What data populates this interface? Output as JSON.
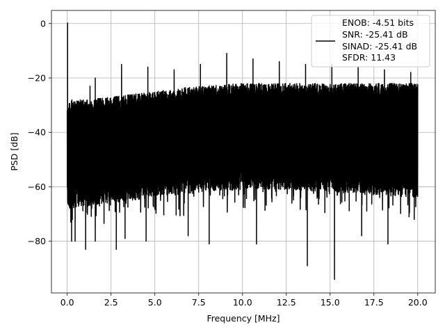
{
  "chart_data": {
    "type": "line",
    "xlabel": "Frequency [MHz]",
    "ylabel": "PSD [dB]",
    "xlim": [
      -0.9,
      21.0
    ],
    "ylim": [
      -99,
      4.8
    ],
    "xticks": [
      0.0,
      2.5,
      5.0,
      7.5,
      10.0,
      12.5,
      15.0,
      17.5,
      20.0
    ],
    "xtick_labels": [
      "0.0",
      "2.5",
      "5.0",
      "7.5",
      "10.0",
      "12.5",
      "15.0",
      "17.5",
      "20.0"
    ],
    "yticks": [
      0,
      -20,
      -40,
      -60,
      -80
    ],
    "ytick_labels": [
      "0",
      "−20",
      "−40",
      "−60",
      "−80"
    ],
    "grid": true,
    "legend_position": "top-right",
    "series": [
      {
        "name": "ENOB: -4.51 bits\nSNR: -25.41 dB\nSINAD: -25.41 dB\nSFDR: 11.43",
        "legend_lines": [
          "ENOB: -4.51 bits",
          "SNR: -25.41 dB",
          "SINAD: -25.41 dB",
          "SFDR: 11.43"
        ],
        "color": "#000000",
        "x_range": [
          0.0,
          20.0
        ],
        "noise_envelope": {
          "upper": {
            "x": [
              0.0,
              0.2,
              1.0,
              2.5,
              5.0,
              7.5,
              10.0,
              12.5,
              15.0,
              17.5,
              20.0
            ],
            "y": [
              -30,
              -28,
              -28,
              -27,
              -25,
              -23,
              -22,
              -22,
              -22,
              -22,
              -22
            ]
          },
          "lower": {
            "x": [
              0.0,
              2.5,
              5.0,
              7.5,
              10.0,
              12.5,
              15.0,
              17.5,
              20.0
            ],
            "y": [
              -68,
              -66,
              -64,
              -62,
              -61,
              -61,
              -62,
              -63,
              -64
            ]
          }
        },
        "peaks": [
          {
            "x": 0.02,
            "y": 0.2
          },
          {
            "x": 1.3,
            "y": -23
          },
          {
            "x": 1.6,
            "y": -20
          },
          {
            "x": 3.1,
            "y": -15
          },
          {
            "x": 4.6,
            "y": -16
          },
          {
            "x": 6.1,
            "y": -17
          },
          {
            "x": 7.6,
            "y": -15
          },
          {
            "x": 9.1,
            "y": -11
          },
          {
            "x": 10.6,
            "y": -13
          },
          {
            "x": 12.1,
            "y": -14
          },
          {
            "x": 13.6,
            "y": -15
          },
          {
            "x": 15.1,
            "y": -15
          },
          {
            "x": 16.6,
            "y": -16
          },
          {
            "x": 18.1,
            "y": -17
          },
          {
            "x": 19.6,
            "y": -18
          }
        ],
        "dips": [
          {
            "x": 0.25,
            "y": -80
          },
          {
            "x": 0.45,
            "y": -80
          },
          {
            "x": 1.05,
            "y": -83
          },
          {
            "x": 1.6,
            "y": -80
          },
          {
            "x": 2.8,
            "y": -83
          },
          {
            "x": 3.3,
            "y": -79
          },
          {
            "x": 4.5,
            "y": -80
          },
          {
            "x": 6.9,
            "y": -78
          },
          {
            "x": 8.1,
            "y": -81
          },
          {
            "x": 10.8,
            "y": -81
          },
          {
            "x": 13.7,
            "y": -89
          },
          {
            "x": 15.25,
            "y": -94
          },
          {
            "x": 16.8,
            "y": -78
          },
          {
            "x": 18.3,
            "y": -81
          },
          {
            "x": 19.8,
            "y": -72
          }
        ]
      }
    ]
  }
}
